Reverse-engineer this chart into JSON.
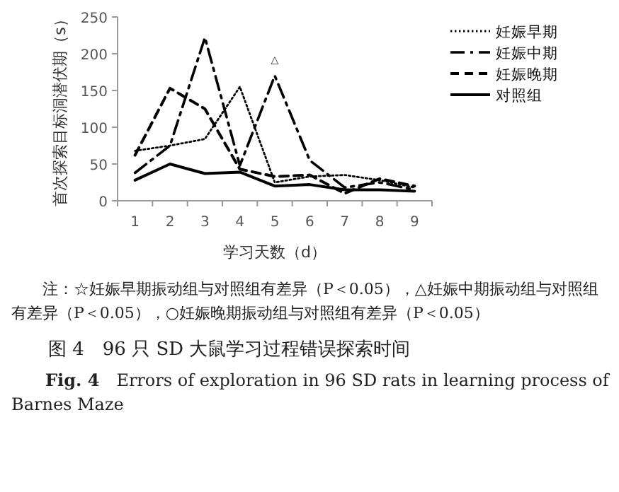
{
  "chart_data": {
    "type": "line",
    "title": "图 4　96 只 SD 大鼠学习过程错误探索时间",
    "subtitle": "**Fig. 4**　Errors of exploration in 96 SD rats in learning process of Barnes Maze",
    "xlabel": "学习天数（d）",
    "ylabel": "首次探索目标洞潜伏期（s）",
    "categories": [
      "1",
      "2",
      "3",
      "4",
      "5",
      "6",
      "7",
      "8",
      "9"
    ],
    "ylim": [
      0,
      250
    ],
    "yticks": [
      0,
      50,
      100,
      150,
      200,
      250
    ],
    "grid": false,
    "legend": "right",
    "marker": "none",
    "series": [
      {
        "name": "妊娠早期",
        "color": "#000000",
        "line_style": "dotted",
        "values": [
          68,
          75,
          84,
          155,
          25,
          33,
          35,
          28,
          18
        ]
      },
      {
        "name": "妊娠中期",
        "color": "#000000",
        "line_style": "dashdot",
        "values": [
          38,
          75,
          222,
          48,
          170,
          55,
          18,
          25,
          15
        ]
      },
      {
        "name": "妊娠晚期",
        "color": "#000000",
        "line_style": "dashed",
        "values": [
          62,
          153,
          125,
          43,
          33,
          35,
          10,
          30,
          20
        ]
      },
      {
        "name": "对照组",
        "color": "#000000",
        "line_style": "solid",
        "values": [
          28,
          50,
          37,
          39,
          20,
          22,
          15,
          15,
          13
        ]
      }
    ],
    "annotations": [
      {
        "text": "△",
        "x": "5",
        "y": 170
      },
      "注：☆妊娠早期振动组与对照组有差异（P＜0.05），△妊娠中期振动组与对照组有差异（P＜0.05），○妊娠晚期振动组与对照组有差异（P＜0.05）"
    ]
  }
}
